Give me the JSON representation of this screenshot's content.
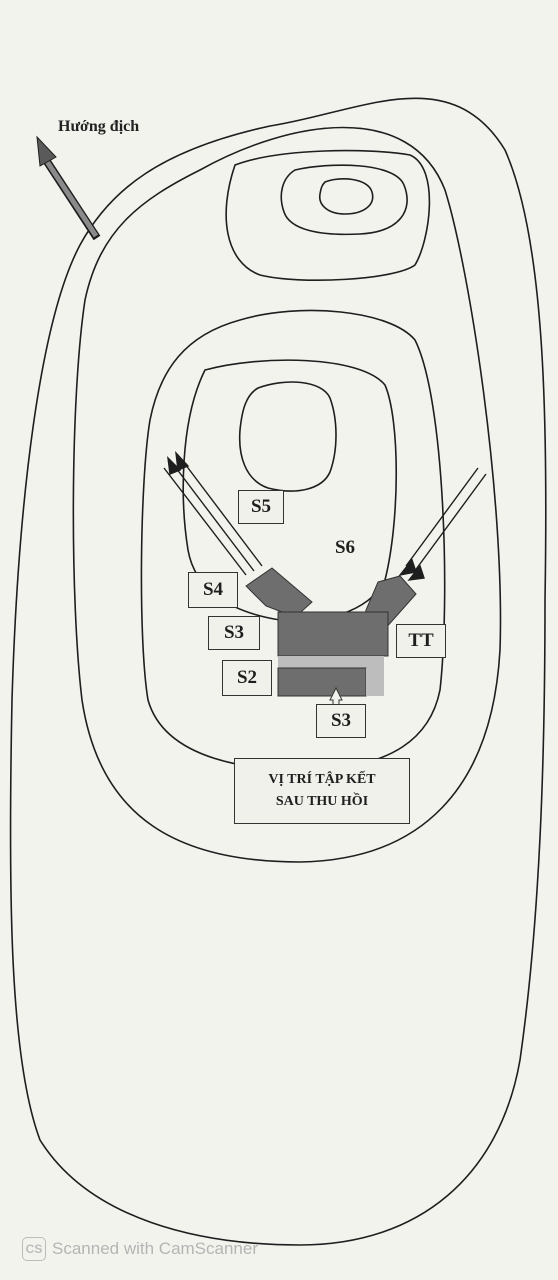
{
  "direction_label": "Hướng địch",
  "labels": {
    "s5": "S5",
    "s6": "S6",
    "s4": "S4",
    "s3_left": "S3",
    "s2": "S2",
    "s3_bottom": "S3",
    "tt": "TT"
  },
  "caption": {
    "line1": "VỊ TRÍ TẬP KẾT",
    "line2": "SAU THU HỒI"
  },
  "footer": {
    "logo": "CS",
    "text": "Scanned with CamScanner"
  },
  "colors": {
    "contour": "#1e1e1e",
    "paper": "#f3f3ee",
    "formation_dark": "#6e6e6e",
    "formation_light": "#bdbdbd"
  }
}
